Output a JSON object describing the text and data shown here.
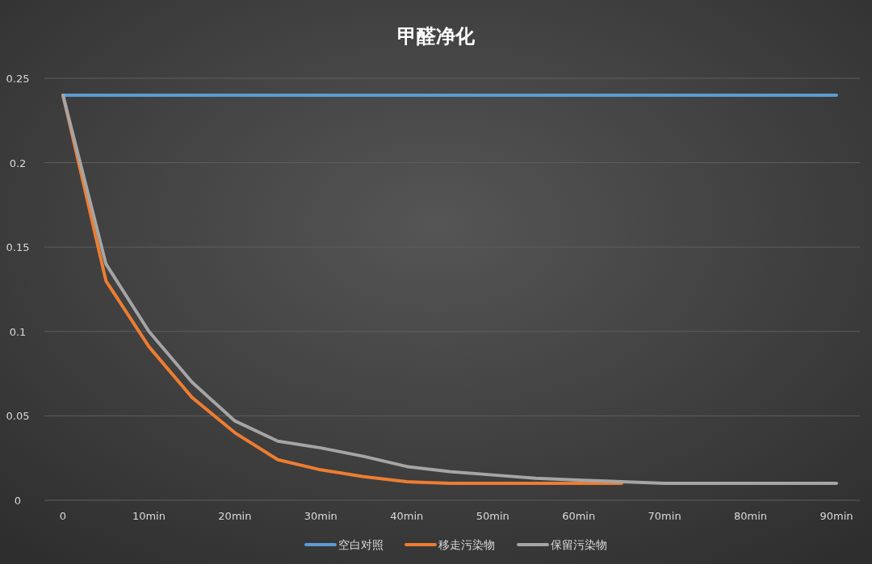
{
  "chart_data": {
    "type": "line",
    "title": "甲醛净化",
    "categories": [
      "0",
      null,
      "10min",
      null,
      "20min",
      null,
      "30min",
      null,
      "40min",
      null,
      "50min",
      null,
      "60min",
      null,
      "70min",
      null,
      "80min",
      null,
      "90min"
    ],
    "series": [
      {
        "name": "空白对照",
        "color": "#5b9bd5",
        "values": [
          0.24,
          0.24,
          0.24,
          0.24,
          0.24,
          0.24,
          0.24,
          0.24,
          0.24,
          0.24,
          0.24,
          0.24,
          0.24,
          0.24,
          0.24,
          0.24,
          0.24,
          0.24,
          0.24
        ]
      },
      {
        "name": "移走污染物",
        "color": "#ed7d31",
        "values": [
          0.24,
          0.13,
          0.091,
          0.061,
          0.04,
          0.024,
          0.018,
          0.014,
          0.011,
          0.01,
          0.01,
          0.01,
          0.01,
          0.01,
          null,
          null,
          null,
          null,
          null
        ]
      },
      {
        "name": "保留污染物",
        "color": "#a5a5a5",
        "values": [
          0.24,
          0.14,
          0.1,
          0.07,
          0.047,
          0.035,
          0.031,
          0.026,
          0.02,
          0.017,
          0.015,
          0.013,
          0.012,
          0.011,
          0.01,
          0.01,
          0.01,
          0.01,
          0.01
        ]
      }
    ],
    "ylim": [
      0,
      0.25
    ],
    "yticks": [
      0,
      0.05,
      0.1,
      0.15,
      0.2,
      0.25
    ],
    "grid": "y",
    "legend": "bottom"
  }
}
